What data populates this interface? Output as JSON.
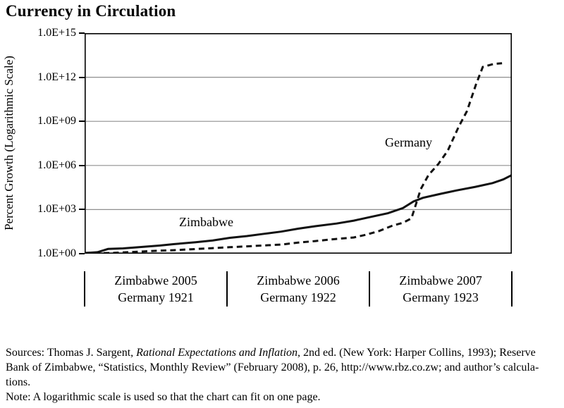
{
  "page": {
    "background": "#ffffff",
    "text_color": "#000000"
  },
  "chart_data": {
    "type": "line",
    "title": "Currency in Circulation",
    "ylabel": "Percent Growth (Logarithmic Scale)",
    "legend": "inline-labels",
    "grid": "horizontal-only",
    "y_axis": {
      "scale": "log10",
      "ylim": [
        "1.0E+00",
        "1.0E+15"
      ],
      "ticks": [
        {
          "label": "1.0E+15",
          "exp": 15
        },
        {
          "label": "1.0E+12",
          "exp": 12
        },
        {
          "label": "1.0E+09",
          "exp": 9
        },
        {
          "label": "1.0E+06",
          "exp": 6
        },
        {
          "label": "1.0E+03",
          "exp": 3
        },
        {
          "label": "1.0E+00",
          "exp": 0
        }
      ],
      "gridline_exponents": [
        3,
        6,
        9,
        12
      ],
      "gridline_color": "#8f8f8f"
    },
    "x_axis": {
      "groups": [
        {
          "line1": "Zimbabwe 2005",
          "line2": "Germany 1921"
        },
        {
          "line1": "Zimbabwe 2006",
          "line2": "Germany 1922"
        },
        {
          "line1": "Zimbabwe 2007",
          "line2": "Germany 1923"
        }
      ],
      "separators_t": [
        0,
        0.3333,
        0.6667,
        1
      ]
    },
    "series": [
      {
        "name": "Zimbabwe",
        "style": "solid",
        "color": "#111111",
        "points_t_log10pct": [
          [
            0.0,
            0.05
          ],
          [
            0.03,
            0.1
          ],
          [
            0.055,
            0.32
          ],
          [
            0.09,
            0.36
          ],
          [
            0.13,
            0.45
          ],
          [
            0.175,
            0.55
          ],
          [
            0.21,
            0.65
          ],
          [
            0.26,
            0.78
          ],
          [
            0.3,
            0.9
          ],
          [
            0.34,
            1.08
          ],
          [
            0.38,
            1.2
          ],
          [
            0.42,
            1.35
          ],
          [
            0.46,
            1.5
          ],
          [
            0.5,
            1.7
          ],
          [
            0.54,
            1.87
          ],
          [
            0.59,
            2.05
          ],
          [
            0.63,
            2.25
          ],
          [
            0.67,
            2.5
          ],
          [
            0.71,
            2.75
          ],
          [
            0.745,
            3.1
          ],
          [
            0.77,
            3.55
          ],
          [
            0.792,
            3.8
          ],
          [
            0.83,
            4.05
          ],
          [
            0.87,
            4.3
          ],
          [
            0.915,
            4.55
          ],
          [
            0.955,
            4.8
          ],
          [
            0.98,
            5.05
          ],
          [
            1.0,
            5.35
          ]
        ]
      },
      {
        "name": "Germany",
        "style": "dashed",
        "color": "#111111",
        "points_t_log10pct": [
          [
            0.0,
            0.0
          ],
          [
            0.06,
            0.05
          ],
          [
            0.1,
            0.1
          ],
          [
            0.13,
            0.14
          ],
          [
            0.17,
            0.2
          ],
          [
            0.21,
            0.24
          ],
          [
            0.25,
            0.3
          ],
          [
            0.3,
            0.38
          ],
          [
            0.34,
            0.44
          ],
          [
            0.38,
            0.5
          ],
          [
            0.42,
            0.56
          ],
          [
            0.46,
            0.62
          ],
          [
            0.5,
            0.75
          ],
          [
            0.54,
            0.86
          ],
          [
            0.58,
            0.98
          ],
          [
            0.63,
            1.1
          ],
          [
            0.66,
            1.3
          ],
          [
            0.69,
            1.55
          ],
          [
            0.72,
            1.9
          ],
          [
            0.745,
            2.1
          ],
          [
            0.765,
            2.4
          ],
          [
            0.787,
            4.4
          ],
          [
            0.805,
            5.35
          ],
          [
            0.828,
            6.1
          ],
          [
            0.85,
            7.0
          ],
          [
            0.875,
            8.6
          ],
          [
            0.895,
            9.7
          ],
          [
            0.916,
            11.5
          ],
          [
            0.932,
            12.7
          ],
          [
            0.957,
            12.9
          ],
          [
            0.977,
            12.95
          ]
        ]
      }
    ]
  },
  "sources": {
    "line1_prefix": "Sources: Thomas J. Sargent, ",
    "line1_italic": "Rational Expectations and Inflation",
    "line1_suffix": ", 2nd ed. (New York: Harper Collins, 1993); Reserve",
    "line2": "Bank of Zimbabwe, “Statistics, Monthly Review” (February 2008), p. 26, http://www.rbz.co.zw; and author’s calcula-",
    "line3": "tions.",
    "line4": "Note: A logarithmic scale is used so that the chart can fit on one page."
  }
}
